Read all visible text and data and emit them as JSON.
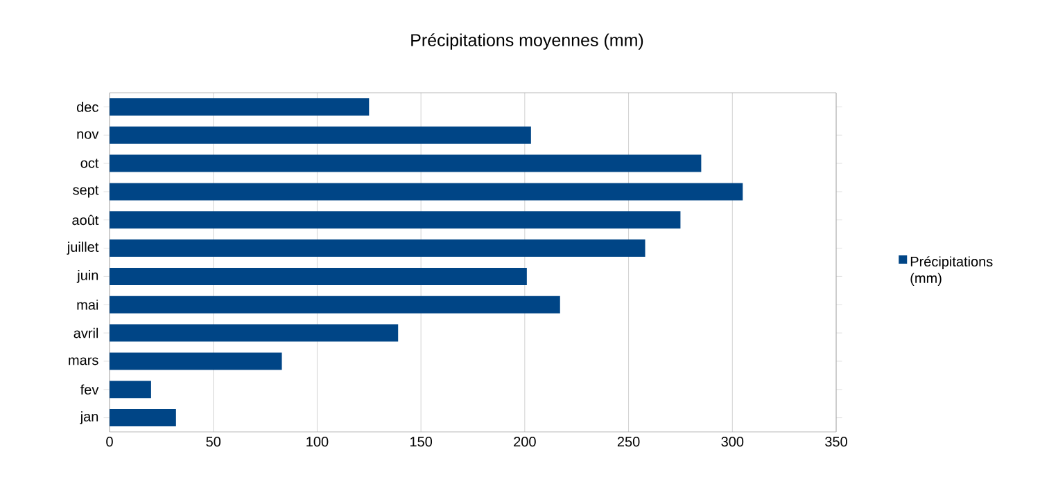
{
  "chart_data": {
    "type": "bar",
    "title": "Précipitations moyennes (mm)",
    "orientation": "horizontal",
    "categories": [
      "dec",
      "nov",
      "oct",
      "sept",
      "août",
      "juillet",
      "juin",
      "mai",
      "avril",
      "mars",
      "fev",
      "jan"
    ],
    "series": [
      {
        "name": "Précipitations (mm)",
        "color": "#004586",
        "values": [
          125,
          203,
          285,
          305,
          275,
          258,
          201,
          217,
          139,
          83,
          20,
          32
        ]
      }
    ],
    "xlim": [
      0,
      350
    ],
    "xticks": [
      0,
      50,
      100,
      150,
      200,
      250,
      300,
      350
    ],
    "grid": "x",
    "legend": "right"
  }
}
